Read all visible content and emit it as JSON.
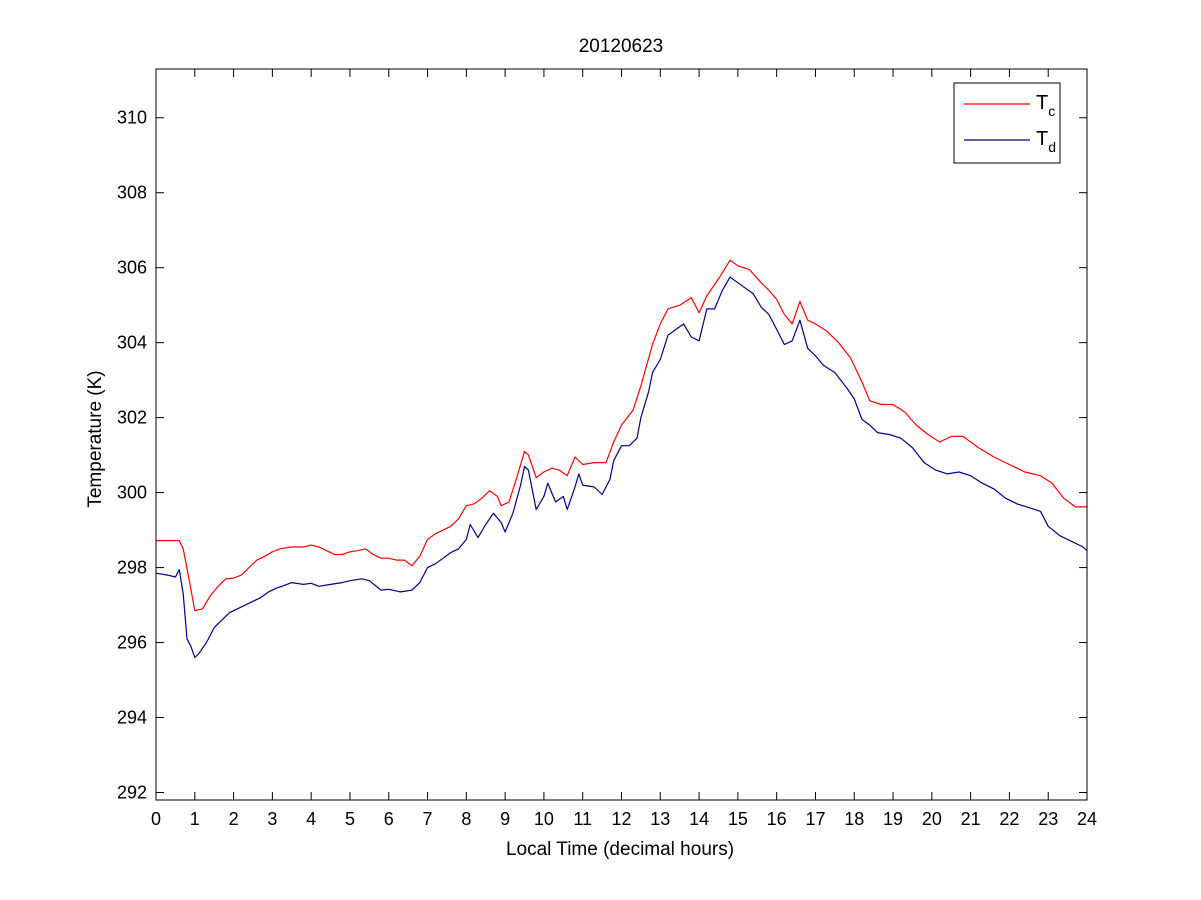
{
  "chart_data": {
    "type": "line",
    "title": "20120623",
    "xlabel": "Local Time (decimal hours)",
    "ylabel": "Temperature (K)",
    "xlim": [
      0,
      24
    ],
    "ylim": [
      291.8,
      311.3
    ],
    "xticks": [
      0,
      1,
      2,
      3,
      4,
      5,
      6,
      7,
      8,
      9,
      10,
      11,
      12,
      13,
      14,
      15,
      16,
      17,
      18,
      19,
      20,
      21,
      22,
      23,
      24
    ],
    "yticks": [
      292,
      294,
      296,
      298,
      300,
      302,
      304,
      306,
      308,
      310
    ],
    "grid": false,
    "legend_position": "top-right",
    "series": [
      {
        "name": "Tc",
        "label_main": "T",
        "label_sub": "c",
        "color": "#ff0000",
        "points": [
          [
            0.0,
            298.72
          ],
          [
            0.5,
            298.72
          ],
          [
            0.6,
            298.72
          ],
          [
            0.7,
            298.5
          ],
          [
            0.85,
            297.7
          ],
          [
            1.0,
            296.85
          ],
          [
            1.2,
            296.9
          ],
          [
            1.4,
            297.25
          ],
          [
            1.6,
            297.5
          ],
          [
            1.8,
            297.7
          ],
          [
            2.0,
            297.72
          ],
          [
            2.2,
            297.8
          ],
          [
            2.4,
            298.0
          ],
          [
            2.6,
            298.2
          ],
          [
            2.8,
            298.3
          ],
          [
            3.0,
            298.42
          ],
          [
            3.2,
            298.5
          ],
          [
            3.5,
            298.55
          ],
          [
            3.8,
            298.55
          ],
          [
            4.0,
            298.6
          ],
          [
            4.2,
            298.55
          ],
          [
            4.4,
            298.45
          ],
          [
            4.6,
            298.35
          ],
          [
            4.8,
            298.35
          ],
          [
            5.0,
            298.42
          ],
          [
            5.2,
            298.45
          ],
          [
            5.4,
            298.5
          ],
          [
            5.6,
            298.35
          ],
          [
            5.8,
            298.25
          ],
          [
            6.0,
            298.25
          ],
          [
            6.2,
            298.2
          ],
          [
            6.4,
            298.2
          ],
          [
            6.6,
            298.05
          ],
          [
            6.8,
            298.3
          ],
          [
            7.0,
            298.75
          ],
          [
            7.2,
            298.9
          ],
          [
            7.4,
            299.0
          ],
          [
            7.6,
            299.1
          ],
          [
            7.8,
            299.3
          ],
          [
            8.0,
            299.65
          ],
          [
            8.2,
            299.7
          ],
          [
            8.4,
            299.85
          ],
          [
            8.6,
            300.05
          ],
          [
            8.8,
            299.9
          ],
          [
            8.9,
            299.65
          ],
          [
            9.1,
            299.75
          ],
          [
            9.3,
            300.4
          ],
          [
            9.5,
            301.1
          ],
          [
            9.6,
            301.0
          ],
          [
            9.8,
            300.4
          ],
          [
            10.0,
            300.55
          ],
          [
            10.2,
            300.65
          ],
          [
            10.4,
            300.6
          ],
          [
            10.6,
            300.45
          ],
          [
            10.8,
            300.95
          ],
          [
            11.0,
            300.75
          ],
          [
            11.3,
            300.8
          ],
          [
            11.6,
            300.8
          ],
          [
            11.8,
            301.35
          ],
          [
            12.0,
            301.8
          ],
          [
            12.3,
            302.2
          ],
          [
            12.5,
            302.85
          ],
          [
            12.8,
            303.95
          ],
          [
            13.0,
            304.5
          ],
          [
            13.2,
            304.9
          ],
          [
            13.5,
            305.0
          ],
          [
            13.8,
            305.2
          ],
          [
            14.0,
            304.8
          ],
          [
            14.2,
            305.25
          ],
          [
            14.5,
            305.7
          ],
          [
            14.8,
            306.2
          ],
          [
            15.0,
            306.05
          ],
          [
            15.3,
            305.95
          ],
          [
            15.6,
            305.6
          ],
          [
            15.8,
            305.4
          ],
          [
            16.0,
            305.15
          ],
          [
            16.2,
            304.75
          ],
          [
            16.4,
            304.5
          ],
          [
            16.6,
            305.1
          ],
          [
            16.8,
            304.6
          ],
          [
            17.0,
            304.5
          ],
          [
            17.3,
            304.3
          ],
          [
            17.6,
            304.0
          ],
          [
            17.9,
            303.6
          ],
          [
            18.2,
            302.95
          ],
          [
            18.4,
            302.45
          ],
          [
            18.7,
            302.35
          ],
          [
            19.0,
            302.35
          ],
          [
            19.3,
            302.15
          ],
          [
            19.6,
            301.8
          ],
          [
            19.9,
            301.55
          ],
          [
            20.2,
            301.35
          ],
          [
            20.5,
            301.5
          ],
          [
            20.8,
            301.5
          ],
          [
            21.2,
            301.2
          ],
          [
            21.6,
            300.95
          ],
          [
            22.0,
            300.75
          ],
          [
            22.4,
            300.55
          ],
          [
            22.8,
            300.45
          ],
          [
            23.1,
            300.25
          ],
          [
            23.4,
            299.85
          ],
          [
            23.7,
            299.62
          ],
          [
            24.0,
            299.62
          ]
        ]
      },
      {
        "name": "Td",
        "label_main": "T",
        "label_sub": "d",
        "color": "#00008b",
        "points": [
          [
            0.0,
            297.85
          ],
          [
            0.3,
            297.8
          ],
          [
            0.5,
            297.75
          ],
          [
            0.6,
            297.95
          ],
          [
            0.7,
            297.3
          ],
          [
            0.8,
            296.1
          ],
          [
            0.9,
            295.9
          ],
          [
            1.0,
            295.6
          ],
          [
            1.1,
            295.7
          ],
          [
            1.3,
            296.0
          ],
          [
            1.5,
            296.4
          ],
          [
            1.7,
            296.6
          ],
          [
            1.9,
            296.8
          ],
          [
            2.1,
            296.9
          ],
          [
            2.3,
            297.0
          ],
          [
            2.5,
            297.1
          ],
          [
            2.7,
            297.2
          ],
          [
            2.9,
            297.35
          ],
          [
            3.1,
            297.45
          ],
          [
            3.3,
            297.52
          ],
          [
            3.5,
            297.6
          ],
          [
            3.8,
            297.55
          ],
          [
            4.0,
            297.58
          ],
          [
            4.2,
            297.5
          ],
          [
            4.5,
            297.55
          ],
          [
            4.8,
            297.6
          ],
          [
            5.0,
            297.65
          ],
          [
            5.3,
            297.7
          ],
          [
            5.5,
            297.65
          ],
          [
            5.8,
            297.4
          ],
          [
            6.0,
            297.42
          ],
          [
            6.3,
            297.35
          ],
          [
            6.6,
            297.4
          ],
          [
            6.8,
            297.6
          ],
          [
            7.0,
            298.0
          ],
          [
            7.2,
            298.1
          ],
          [
            7.4,
            298.25
          ],
          [
            7.6,
            298.4
          ],
          [
            7.8,
            298.5
          ],
          [
            8.0,
            298.75
          ],
          [
            8.1,
            299.15
          ],
          [
            8.3,
            298.8
          ],
          [
            8.5,
            299.15
          ],
          [
            8.7,
            299.45
          ],
          [
            8.9,
            299.2
          ],
          [
            9.0,
            298.95
          ],
          [
            9.2,
            299.45
          ],
          [
            9.4,
            300.2
          ],
          [
            9.5,
            300.7
          ],
          [
            9.6,
            300.6
          ],
          [
            9.8,
            299.55
          ],
          [
            10.0,
            299.9
          ],
          [
            10.1,
            300.25
          ],
          [
            10.3,
            299.75
          ],
          [
            10.5,
            299.9
          ],
          [
            10.6,
            299.55
          ],
          [
            10.8,
            300.15
          ],
          [
            10.9,
            300.5
          ],
          [
            11.0,
            300.2
          ],
          [
            11.3,
            300.15
          ],
          [
            11.5,
            299.95
          ],
          [
            11.7,
            300.35
          ],
          [
            11.8,
            300.85
          ],
          [
            12.0,
            301.25
          ],
          [
            12.2,
            301.25
          ],
          [
            12.4,
            301.45
          ],
          [
            12.5,
            302.0
          ],
          [
            12.7,
            302.7
          ],
          [
            12.8,
            303.2
          ],
          [
            13.0,
            303.55
          ],
          [
            13.2,
            304.2
          ],
          [
            13.4,
            304.35
          ],
          [
            13.6,
            304.5
          ],
          [
            13.8,
            304.15
          ],
          [
            14.0,
            304.05
          ],
          [
            14.2,
            304.9
          ],
          [
            14.4,
            304.9
          ],
          [
            14.6,
            305.4
          ],
          [
            14.8,
            305.75
          ],
          [
            15.0,
            305.6
          ],
          [
            15.2,
            305.45
          ],
          [
            15.4,
            305.3
          ],
          [
            15.6,
            304.95
          ],
          [
            15.8,
            304.75
          ],
          [
            16.0,
            304.35
          ],
          [
            16.2,
            303.95
          ],
          [
            16.4,
            304.05
          ],
          [
            16.6,
            304.6
          ],
          [
            16.8,
            303.85
          ],
          [
            17.0,
            303.65
          ],
          [
            17.2,
            303.4
          ],
          [
            17.5,
            303.2
          ],
          [
            17.8,
            302.8
          ],
          [
            18.0,
            302.5
          ],
          [
            18.2,
            301.95
          ],
          [
            18.4,
            301.8
          ],
          [
            18.6,
            301.6
          ],
          [
            18.9,
            301.55
          ],
          [
            19.2,
            301.45
          ],
          [
            19.5,
            301.2
          ],
          [
            19.8,
            300.8
          ],
          [
            20.1,
            300.6
          ],
          [
            20.4,
            300.5
          ],
          [
            20.7,
            300.55
          ],
          [
            21.0,
            300.45
          ],
          [
            21.3,
            300.25
          ],
          [
            21.6,
            300.1
          ],
          [
            21.9,
            299.85
          ],
          [
            22.2,
            299.7
          ],
          [
            22.5,
            299.6
          ],
          [
            22.8,
            299.5
          ],
          [
            23.0,
            299.1
          ],
          [
            23.3,
            298.85
          ],
          [
            23.6,
            298.7
          ],
          [
            23.9,
            298.55
          ],
          [
            24.0,
            298.45
          ]
        ]
      }
    ]
  }
}
